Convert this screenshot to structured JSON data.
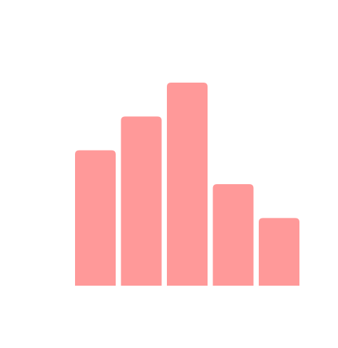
{
  "chart_data": {
    "type": "bar",
    "categories": [
      "",
      "",
      "",
      "",
      ""
    ],
    "values": [
      4,
      5,
      6,
      3,
      2
    ],
    "ylim": [
      0,
      6
    ],
    "grid": false,
    "axes_visible": false,
    "legend": "none",
    "bar_color": "#ff9999"
  }
}
